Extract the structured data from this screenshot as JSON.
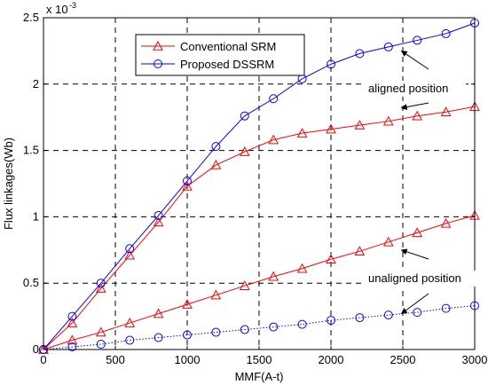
{
  "chart_data": {
    "type": "line",
    "xlabel": "MMF(A-t)",
    "ylabel": "Flux linkages(Wb)",
    "scale_note": "x 10",
    "scale_exponent": "-3",
    "xlim": [
      0,
      3000
    ],
    "ylim": [
      0,
      2.5
    ],
    "x_ticks": [
      0,
      500,
      1000,
      1500,
      2000,
      2500,
      3000
    ],
    "y_ticks": [
      0,
      0.5,
      1,
      1.5,
      2,
      2.5
    ],
    "x_tick_labels": [
      "0",
      "500",
      "1000",
      "1500",
      "2000",
      "2500",
      "3000"
    ],
    "y_tick_labels": [
      "0",
      "0.5",
      "1",
      "1.5",
      "2",
      "2.5"
    ],
    "grid": "dashed at major ticks",
    "legend": "top-left",
    "x": [
      0,
      200,
      400,
      600,
      800,
      1000,
      1200,
      1400,
      1600,
      1800,
      2000,
      2200,
      2400,
      2600,
      2800,
      3000
    ],
    "series": [
      {
        "name": "Conventional SRM",
        "color": "#ff0000",
        "marker": "triangle",
        "style": "solid",
        "group": "aligned",
        "values": [
          0,
          0.2,
          0.46,
          0.71,
          0.96,
          1.23,
          1.39,
          1.49,
          1.58,
          1.63,
          1.66,
          1.69,
          1.72,
          1.76,
          1.79,
          1.83
        ]
      },
      {
        "name": "Proposed DSSRM",
        "color": "#0000ff",
        "marker": "circle",
        "style": "solid",
        "group": "aligned",
        "values": [
          0,
          0.25,
          0.5,
          0.76,
          1.01,
          1.27,
          1.53,
          1.76,
          1.89,
          2.04,
          2.15,
          2.23,
          2.28,
          2.33,
          2.38,
          2.46
        ]
      },
      {
        "color": "#ff0000",
        "marker": "triangle",
        "style": "solid",
        "group": "unaligned",
        "values": [
          0,
          0.07,
          0.13,
          0.2,
          0.27,
          0.34,
          0.41,
          0.48,
          0.55,
          0.61,
          0.68,
          0.74,
          0.81,
          0.88,
          0.95,
          1.01
        ]
      },
      {
        "color": "#0000ff",
        "marker": "circle",
        "style": "dotted",
        "group": "unaligned",
        "values": [
          0,
          0.02,
          0.04,
          0.07,
          0.09,
          0.11,
          0.13,
          0.15,
          0.17,
          0.19,
          0.22,
          0.24,
          0.26,
          0.28,
          0.31,
          0.33
        ]
      }
    ],
    "annotations": [
      {
        "text": "aligned position",
        "arrows": [
          {
            "tx": 2490,
            "ty": 2.25
          },
          {
            "tx": 2490,
            "ty": 1.82
          }
        ]
      },
      {
        "text": "unaligned position",
        "arrows": [
          {
            "tx": 2490,
            "ty": 0.75
          },
          {
            "tx": 2490,
            "ty": 0.27
          }
        ]
      }
    ]
  }
}
